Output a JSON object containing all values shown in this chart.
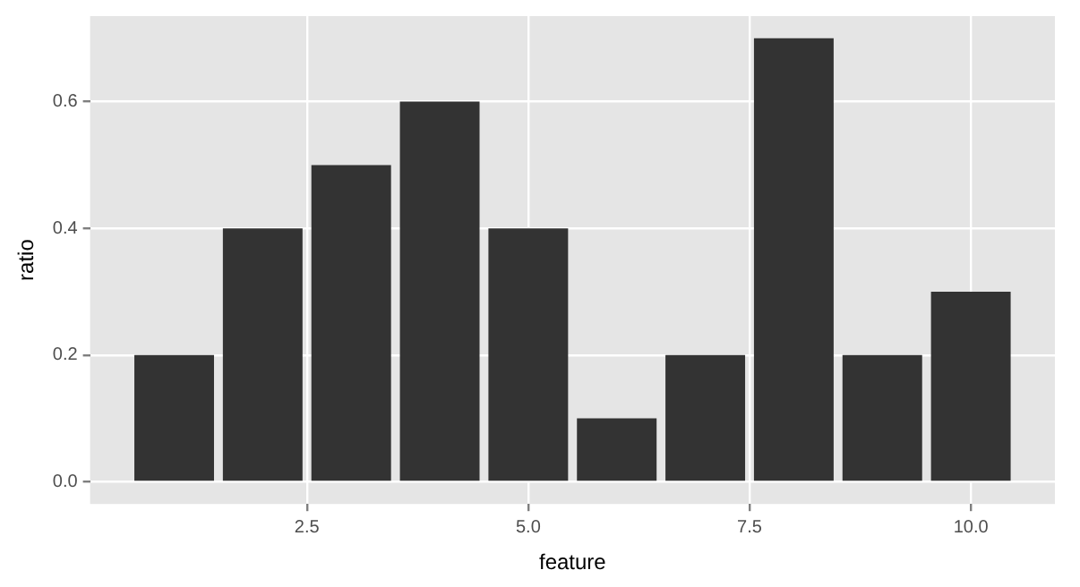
{
  "chart_data": {
    "type": "bar",
    "xlabel": "feature",
    "ylabel": "ratio",
    "x": [
      1,
      2,
      3,
      4,
      5,
      6,
      7,
      8,
      9,
      10
    ],
    "values": [
      0.2,
      0.4,
      0.5,
      0.6,
      0.4,
      0.1,
      0.2,
      0.7,
      0.2,
      0.3
    ],
    "color": "#333333",
    "xlim": [
      0.05,
      10.95
    ],
    "xticks": [
      2.5,
      {
        "value": 5,
        "label": "5.0"
      },
      7.5,
      {
        "value": 10,
        "label": "10.0"
      }
    ],
    "ylim": [
      -0.035,
      0.735
    ],
    "yticks": [
      {
        "value": 0,
        "label": "0.0"
      },
      0.2,
      0.4,
      0.6
    ],
    "grid": true,
    "legend": false
  }
}
